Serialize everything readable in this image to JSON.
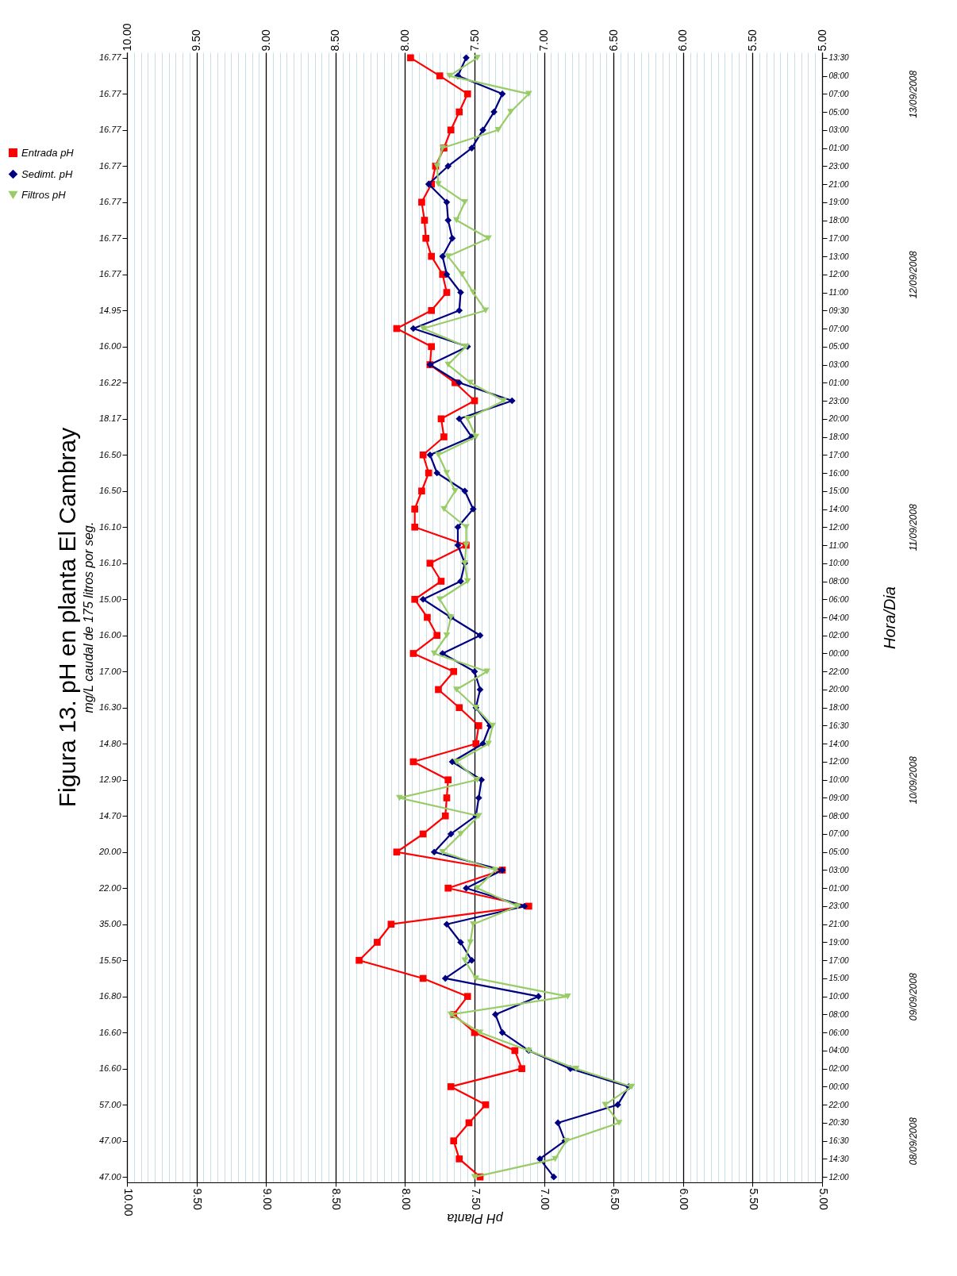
{
  "chart_data": {
    "type": "line",
    "orientation": "horizontal",
    "title": "Figura 13. pH en planta El Cambray",
    "subtitle": "mg/L caudal de 175 litros por seg.",
    "xlabel": "pH Planta",
    "ylabel": "Hora/Dia",
    "categories": [
      "13:30",
      "08:00",
      "07:00",
      "05:00",
      "03:00",
      "01:00",
      "23:00",
      "21:00",
      "19:00",
      "18:00",
      "17:00",
      "13:00",
      "12:00",
      "11:00",
      "09:30",
      "07:00",
      "05:00",
      "03:00",
      "01:00",
      "23:00",
      "20:00",
      "18:00",
      "17:00",
      "16:00",
      "15:00",
      "14:00",
      "12:00",
      "11:00",
      "10:00",
      "08:00",
      "06:00",
      "04:00",
      "02:00",
      "00:00",
      "22:00",
      "20:00",
      "18:00",
      "16:30",
      "14:00",
      "12:00",
      "10:00",
      "09:00",
      "08:00",
      "07:00",
      "05:00",
      "03:00",
      "01:00",
      "23:00",
      "21:00",
      "19:00",
      "17:00",
      "15:00",
      "10:00",
      "08:00",
      "06:00",
      "04:00",
      "02:00",
      "00:00",
      "22:00",
      "20:30",
      "16:30",
      "14:30",
      "12:00"
    ],
    "y2_categories": [
      "16.77",
      null,
      "16.77",
      null,
      "16.77",
      null,
      "16.77",
      null,
      "16.77",
      null,
      "16.77",
      null,
      "16.77",
      null,
      "14.95",
      null,
      "16.00",
      null,
      "16.22",
      null,
      "18.17",
      null,
      "16.50",
      null,
      "16.50",
      null,
      "16.10",
      null,
      "16.10",
      null,
      "15.00",
      null,
      "16.00",
      null,
      "17.00",
      null,
      "16.30",
      null,
      "14.80",
      null,
      "12.90",
      null,
      "14.70",
      null,
      "20.00",
      null,
      "22.00",
      null,
      "35.00",
      null,
      "15.50",
      null,
      "16.80",
      null,
      "16.60",
      null,
      "16.60",
      null,
      "57.00",
      null,
      "47.00",
      null,
      "47.00"
    ],
    "series": [
      {
        "name": "Entrada pH",
        "color": "#ff0000",
        "marker": "square",
        "values": [
          7.96,
          7.75,
          7.55,
          7.61,
          7.67,
          7.72,
          7.78,
          7.81,
          7.88,
          7.86,
          7.85,
          7.81,
          7.73,
          7.7,
          7.81,
          8.06,
          7.81,
          7.82,
          7.64,
          7.5,
          7.74,
          7.72,
          7.87,
          7.83,
          7.88,
          7.93,
          7.93,
          7.56,
          7.82,
          7.74,
          7.93,
          7.84,
          7.77,
          7.94,
          7.65,
          7.76,
          7.61,
          7.47,
          7.49,
          7.94,
          7.69,
          7.7,
          7.71,
          7.87,
          8.06,
          7.3,
          7.69,
          7.11,
          8.1,
          8.2,
          8.33,
          7.87,
          7.55,
          7.65,
          7.5,
          7.21,
          7.16,
          7.67,
          7.42,
          7.54,
          7.65,
          7.61,
          7.46
        ]
      },
      {
        "name": "Sedimt. pH",
        "color": "#000080",
        "marker": "diamond",
        "values": [
          7.56,
          7.62,
          7.3,
          7.36,
          7.44,
          7.52,
          7.69,
          7.83,
          7.7,
          7.69,
          7.66,
          7.73,
          7.7,
          7.6,
          7.61,
          7.94,
          7.55,
          7.82,
          7.61,
          7.23,
          7.61,
          7.52,
          7.82,
          7.77,
          7.57,
          7.51,
          7.62,
          7.62,
          7.57,
          7.6,
          7.87,
          7.67,
          7.46,
          7.73,
          7.5,
          7.46,
          7.49,
          7.39,
          7.44,
          7.66,
          7.45,
          7.47,
          7.49,
          7.67,
          7.79,
          7.3,
          7.56,
          7.14,
          7.7,
          7.6,
          7.52,
          7.71,
          7.04,
          7.35,
          7.3,
          7.11,
          6.81,
          6.39,
          6.47,
          6.9,
          6.85,
          7.03,
          6.93
        ]
      },
      {
        "name": "Filtros pH",
        "color": "#99cc66",
        "marker": "triangle",
        "values": [
          7.48,
          7.68,
          7.11,
          7.24,
          7.33,
          7.73,
          7.77,
          7.76,
          7.57,
          7.63,
          7.4,
          7.69,
          7.59,
          7.51,
          7.42,
          7.87,
          7.56,
          7.69,
          7.53,
          7.29,
          7.55,
          7.49,
          7.76,
          7.7,
          7.64,
          7.72,
          7.56,
          7.56,
          7.57,
          7.55,
          7.75,
          7.67,
          7.7,
          7.79,
          7.41,
          7.63,
          7.49,
          7.37,
          7.4,
          7.63,
          7.48,
          8.04,
          7.47,
          7.6,
          7.73,
          7.35,
          7.48,
          7.19,
          7.51,
          7.53,
          7.57,
          7.49,
          6.83,
          7.67,
          7.46,
          7.11,
          6.77,
          6.37,
          6.56,
          6.46,
          6.84,
          6.92,
          7.5
        ]
      }
    ],
    "xlim": [
      10,
      5
    ],
    "xticks": [
      {
        "value": 5,
        "label": "5.00"
      },
      {
        "value": 5.05,
        "label": null
      },
      {
        "value": 5.1,
        "label": null
      },
      {
        "value": 5.15,
        "label": null
      },
      {
        "value": 5.2,
        "label": null
      },
      {
        "value": 5.25,
        "label": null
      },
      {
        "value": 5.3,
        "label": null
      },
      {
        "value": 5.35,
        "label": null
      },
      {
        "value": 5.4,
        "label": null
      },
      {
        "value": 5.45,
        "label": null
      },
      {
        "value": 5.5,
        "label": "5.50"
      },
      {
        "value": 5.55,
        "label": null
      },
      {
        "value": 5.6,
        "label": null
      },
      {
        "value": 5.65,
        "label": null
      },
      {
        "value": 5.7,
        "label": null
      },
      {
        "value": 5.75,
        "label": null
      },
      {
        "value": 5.8,
        "label": null
      },
      {
        "value": 5.85,
        "label": null
      },
      {
        "value": 5.9,
        "label": null
      },
      {
        "value": 5.95,
        "label": null
      },
      {
        "value": 6,
        "label": "6.00"
      },
      {
        "value": 6.05,
        "label": null
      },
      {
        "value": 6.1,
        "label": null
      },
      {
        "value": 6.15,
        "label": null
      },
      {
        "value": 6.2,
        "label": null
      },
      {
        "value": 6.25,
        "label": null
      },
      {
        "value": 6.3,
        "label": null
      },
      {
        "value": 6.35,
        "label": null
      },
      {
        "value": 6.4,
        "label": null
      },
      {
        "value": 6.45,
        "label": null
      },
      {
        "value": 6.5,
        "label": "6.50"
      },
      {
        "value": 6.55,
        "label": null
      },
      {
        "value": 6.6,
        "label": null
      },
      {
        "value": 6.65,
        "label": null
      },
      {
        "value": 6.7,
        "label": null
      },
      {
        "value": 6.75,
        "label": null
      },
      {
        "value": 6.8,
        "label": null
      },
      {
        "value": 6.85,
        "label": null
      },
      {
        "value": 6.9,
        "label": null
      },
      {
        "value": 6.95,
        "label": null
      },
      {
        "value": 7,
        "label": "7.00"
      },
      {
        "value": 7.05,
        "label": null
      },
      {
        "value": 7.1,
        "label": null
      },
      {
        "value": 7.15,
        "label": null
      },
      {
        "value": 7.2,
        "label": null
      },
      {
        "value": 7.25,
        "label": null
      },
      {
        "value": 7.3,
        "label": null
      },
      {
        "value": 7.35,
        "label": null
      },
      {
        "value": 7.4,
        "label": null
      },
      {
        "value": 7.45,
        "label": null
      },
      {
        "value": 7.5,
        "label": "7.50"
      },
      {
        "value": 7.55,
        "label": null
      },
      {
        "value": 7.6,
        "label": null
      },
      {
        "value": 7.65,
        "label": null
      },
      {
        "value": 7.7,
        "label": null
      },
      {
        "value": 7.75,
        "label": null
      },
      {
        "value": 7.8,
        "label": null
      },
      {
        "value": 7.85,
        "label": null
      },
      {
        "value": 7.9,
        "label": null
      },
      {
        "value": 7.95,
        "label": null
      },
      {
        "value": 8,
        "label": "8.00"
      },
      {
        "value": 8.05,
        "label": null
      },
      {
        "value": 8.1,
        "label": null
      },
      {
        "value": 8.15,
        "label": null
      },
      {
        "value": 8.2,
        "label": null
      },
      {
        "value": 8.25,
        "label": null
      },
      {
        "value": 8.3,
        "label": null
      },
      {
        "value": 8.35,
        "label": null
      },
      {
        "value": 8.4,
        "label": null
      },
      {
        "value": 8.45,
        "label": null
      },
      {
        "value": 8.5,
        "label": "8.50"
      },
      {
        "value": 8.55,
        "label": null
      },
      {
        "value": 8.6,
        "label": null
      },
      {
        "value": 8.65,
        "label": null
      },
      {
        "value": 8.7,
        "label": null
      },
      {
        "value": 8.75,
        "label": null
      },
      {
        "value": 8.8,
        "label": null
      },
      {
        "value": 8.85,
        "label": null
      },
      {
        "value": 8.9,
        "label": null
      },
      {
        "value": 8.95,
        "label": null
      },
      {
        "value": 9,
        "label": "9.00"
      },
      {
        "value": 9.05,
        "label": null
      },
      {
        "value": 9.1,
        "label": null
      },
      {
        "value": 9.15,
        "label": null
      },
      {
        "value": 9.2,
        "label": null
      },
      {
        "value": 9.25,
        "label": null
      },
      {
        "value": 9.3,
        "label": null
      },
      {
        "value": 9.35,
        "label": null
      },
      {
        "value": 9.4,
        "label": null
      },
      {
        "value": 9.45,
        "label": null
      },
      {
        "value": 9.5,
        "label": "9.50"
      },
      {
        "value": 9.55,
        "label": null
      },
      {
        "value": 9.6,
        "label": null
      },
      {
        "value": 9.65,
        "label": null
      },
      {
        "value": 9.7,
        "label": null
      },
      {
        "value": 9.75,
        "label": null
      },
      {
        "value": 9.8,
        "label": null
      },
      {
        "value": 9.85,
        "label": null
      },
      {
        "value": 9.9,
        "label": null
      },
      {
        "value": 9.95,
        "label": null
      },
      {
        "value": 10,
        "label": "10.00"
      }
    ],
    "x2lim": [
      10,
      5
    ],
    "x2ticks": [
      {
        "value": 5,
        "label": "5.00"
      },
      {
        "value": 5.5,
        "label": "5.50"
      },
      {
        "value": 6,
        "label": "6.00"
      },
      {
        "value": 6.5,
        "label": "6.50"
      },
      {
        "value": 7,
        "label": "7.00"
      },
      {
        "value": 7.5,
        "label": "7.50"
      },
      {
        "value": 8,
        "label": "8.00"
      },
      {
        "value": 8.5,
        "label": "8.50"
      },
      {
        "value": 9,
        "label": "9.00"
      },
      {
        "value": 9.5,
        "label": "9.50"
      },
      {
        "value": 10,
        "label": "10.00"
      }
    ],
    "annotations": [
      "13/09/2008",
      "12/09/2008",
      "11/09/2008",
      "10/09/2008",
      "09/09/2008",
      "08/09/2008"
    ],
    "grid": "x",
    "legend": "top left",
    "line_style": "solid"
  }
}
